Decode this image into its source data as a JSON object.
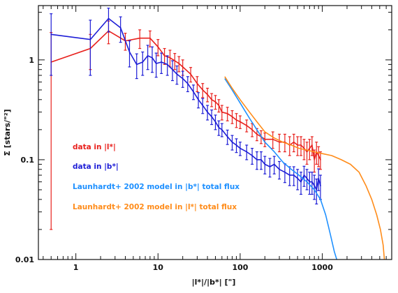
{
  "chart_data": {
    "type": "line",
    "title": "",
    "xlabel": "|l*|/|b*| [\"]",
    "ylabel": "Σ [stars/\"²]",
    "xscale": "log",
    "yscale": "log",
    "xlim": [
      0.35,
      7000
    ],
    "ylim": [
      0.01,
      3.5
    ],
    "x_ticks": [
      1,
      10,
      100,
      1000
    ],
    "x_tick_labels": [
      "1",
      "10",
      "100",
      "1000"
    ],
    "y_ticks": [
      0.01,
      0.1,
      1
    ],
    "y_tick_labels": [
      "0.01",
      "0.1",
      "1"
    ],
    "grid": false,
    "legend_placement": "lower-left",
    "series": [
      {
        "name": "data in |l*|",
        "color": "#e8201c",
        "style": "line-with-errorbars",
        "x": [
          0.5,
          1.5,
          2.5,
          4,
          6,
          8,
          10,
          12,
          14,
          16,
          18,
          20,
          25,
          30,
          35,
          40,
          45,
          50,
          55,
          60,
          70,
          80,
          90,
          100,
          120,
          140,
          160,
          180,
          200,
          250,
          300,
          350,
          400,
          450,
          500,
          550,
          600,
          650,
          700,
          750,
          800,
          850,
          900,
          950
        ],
        "y": [
          0.95,
          1.3,
          1.95,
          1.55,
          1.65,
          1.65,
          1.35,
          1.1,
          1.05,
          0.98,
          0.92,
          0.85,
          0.72,
          0.58,
          0.5,
          0.45,
          0.4,
          0.38,
          0.35,
          0.3,
          0.29,
          0.27,
          0.25,
          0.24,
          0.22,
          0.2,
          0.18,
          0.17,
          0.16,
          0.16,
          0.15,
          0.15,
          0.14,
          0.15,
          0.14,
          0.14,
          0.13,
          0.12,
          0.13,
          0.14,
          0.1,
          0.12,
          0.11,
          0.1
        ],
        "yerr": [
          0.93,
          0.5,
          0.5,
          0.3,
          0.35,
          0.3,
          0.25,
          0.2,
          0.2,
          0.18,
          0.16,
          0.15,
          0.12,
          0.1,
          0.08,
          0.07,
          0.06,
          0.06,
          0.05,
          0.05,
          0.045,
          0.04,
          0.04,
          0.035,
          0.03,
          0.03,
          0.025,
          0.025,
          0.025,
          0.03,
          0.03,
          0.03,
          0.03,
          0.03,
          0.03,
          0.03,
          0.03,
          0.03,
          0.03,
          0.03,
          0.025,
          0.03,
          0.025,
          0.02
        ]
      },
      {
        "name": "data in |b*|",
        "color": "#1d1dd6",
        "style": "line-with-errorbars",
        "x": [
          0.5,
          1.5,
          2.5,
          3.5,
          4.5,
          5.5,
          6.5,
          7.5,
          8.5,
          9.5,
          11,
          13,
          15,
          17,
          20,
          23,
          27,
          31,
          35,
          40,
          45,
          50,
          55,
          60,
          70,
          80,
          90,
          100,
          120,
          140,
          160,
          180,
          200,
          230,
          260,
          300,
          350,
          400,
          450,
          500,
          550,
          600,
          650,
          700,
          750,
          800,
          850,
          900,
          950
        ],
        "y": [
          1.8,
          1.6,
          2.6,
          2.1,
          1.2,
          0.9,
          0.95,
          1.1,
          1.05,
          0.92,
          0.95,
          0.9,
          0.8,
          0.72,
          0.65,
          0.58,
          0.48,
          0.4,
          0.35,
          0.3,
          0.27,
          0.24,
          0.21,
          0.2,
          0.17,
          0.15,
          0.14,
          0.13,
          0.12,
          0.11,
          0.1,
          0.1,
          0.09,
          0.085,
          0.09,
          0.08,
          0.075,
          0.07,
          0.07,
          0.065,
          0.06,
          0.07,
          0.065,
          0.06,
          0.06,
          0.055,
          0.05,
          0.065,
          0.055
        ],
        "yerr": [
          1.1,
          0.9,
          0.7,
          0.6,
          0.35,
          0.25,
          0.25,
          0.3,
          0.3,
          0.25,
          0.22,
          0.2,
          0.18,
          0.15,
          0.12,
          0.1,
          0.08,
          0.07,
          0.06,
          0.05,
          0.045,
          0.04,
          0.035,
          0.03,
          0.028,
          0.025,
          0.022,
          0.02,
          0.02,
          0.02,
          0.02,
          0.02,
          0.018,
          0.018,
          0.018,
          0.016,
          0.016,
          0.015,
          0.015,
          0.015,
          0.015,
          0.016,
          0.015,
          0.015,
          0.015,
          0.015,
          0.014,
          0.016,
          0.015
        ]
      },
      {
        "name": "Launhardt+ 2002 model in |b*| total flux",
        "color": "#1e90ff",
        "style": "line",
        "x": [
          65,
          80,
          100,
          130,
          160,
          200,
          260,
          330,
          420,
          520,
          650,
          800,
          950,
          1100,
          1250,
          1400,
          1500
        ],
        "y": [
          0.65,
          0.5,
          0.37,
          0.26,
          0.2,
          0.15,
          0.12,
          0.095,
          0.08,
          0.07,
          0.06,
          0.05,
          0.04,
          0.028,
          0.018,
          0.012,
          0.01
        ]
      },
      {
        "name": "Launhardt+ 2002 model in |l*| total flux",
        "color": "#ff8c1a",
        "style": "line",
        "x": [
          65,
          80,
          100,
          130,
          160,
          200,
          260,
          330,
          420,
          520,
          650,
          800,
          1000,
          1300,
          1700,
          2200,
          2800,
          3400,
          4000,
          4600,
          5100,
          5500,
          5700
        ],
        "y": [
          0.68,
          0.52,
          0.4,
          0.3,
          0.24,
          0.19,
          0.165,
          0.15,
          0.14,
          0.13,
          0.125,
          0.12,
          0.115,
          0.11,
          0.1,
          0.09,
          0.075,
          0.055,
          0.04,
          0.028,
          0.02,
          0.014,
          0.01
        ]
      }
    ]
  }
}
